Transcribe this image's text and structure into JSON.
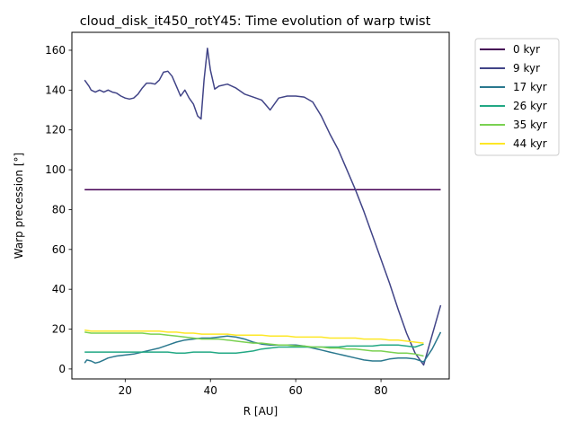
{
  "chart_data": {
    "type": "line",
    "title": "cloud_disk_it450_rotY45: Time evolution of warp twist",
    "xlabel": "R [AU]",
    "ylabel": "Warp precession [°]",
    "xlim": [
      7.5,
      96
    ],
    "ylim": [
      -5,
      169
    ],
    "xticks": [
      20,
      40,
      60,
      80
    ],
    "yticks": [
      0,
      20,
      40,
      60,
      80,
      100,
      120,
      140,
      160
    ],
    "legend_position": "outside-top-right",
    "series": [
      {
        "name": "0 kyr",
        "color": "#440154",
        "x": [
          10.5,
          94
        ],
        "y": [
          90,
          90
        ]
      },
      {
        "name": "9 kyr",
        "color": "#414487",
        "x": [
          10.5,
          11.5,
          12,
          13,
          14,
          15,
          16,
          17,
          18,
          19,
          20,
          21,
          22,
          23,
          24,
          25,
          26,
          27,
          28,
          29,
          30,
          31,
          32,
          33,
          34,
          35,
          36,
          37,
          37.8,
          38.5,
          39.3,
          40,
          41,
          42,
          44,
          46,
          48,
          50,
          52,
          54,
          56,
          58,
          60,
          62,
          64,
          66,
          68,
          70,
          72,
          74,
          76,
          78,
          80,
          82,
          84,
          86,
          88,
          90,
          92,
          94
        ],
        "y": [
          145,
          142,
          140,
          139,
          140,
          139,
          140,
          139,
          138.5,
          137,
          136,
          135.5,
          136,
          138,
          141,
          143.5,
          143.5,
          143,
          145,
          149,
          149.5,
          147,
          142,
          137,
          140,
          136,
          133,
          127,
          125.5,
          145,
          161,
          150,
          140.5,
          142,
          143,
          141,
          138,
          136.5,
          135,
          130,
          136,
          137,
          137,
          136.5,
          134,
          127,
          118,
          110,
          100,
          90,
          79,
          67,
          55,
          43,
          30,
          18,
          8,
          2,
          17,
          32
        ]
      },
      {
        "name": "17 kyr",
        "color": "#2a788e",
        "x": [
          10.5,
          11,
          12,
          13,
          14,
          15,
          16,
          18,
          20,
          22,
          24,
          26,
          28,
          30,
          32,
          34,
          36,
          38,
          40,
          42,
          44,
          46,
          48,
          50,
          52,
          54,
          56,
          58,
          60,
          62,
          64,
          66,
          68,
          70,
          72,
          74,
          76,
          78,
          80,
          82,
          84,
          86,
          88,
          90,
          92,
          94
        ],
        "y": [
          3,
          4.5,
          4,
          3,
          3.5,
          4.5,
          5.5,
          6.5,
          7,
          7.5,
          8.5,
          9.5,
          10.5,
          12,
          13.5,
          14.5,
          15,
          15.5,
          15.5,
          16,
          16.5,
          16,
          15,
          13.5,
          12.5,
          12,
          12,
          12,
          12,
          11.5,
          10.5,
          9.5,
          8.5,
          7.5,
          6.5,
          5.5,
          4.5,
          4,
          4,
          5,
          5.5,
          5.5,
          5,
          3.5,
          10,
          18.5
        ]
      },
      {
        "name": "26 kyr",
        "color": "#22a884",
        "x": [
          10.5,
          12,
          14,
          16,
          18,
          20,
          22,
          24,
          26,
          28,
          30,
          32,
          34,
          36,
          38,
          40,
          42,
          44,
          46,
          48,
          50,
          52,
          54,
          56,
          58,
          60,
          62,
          64,
          66,
          68,
          70,
          72,
          74,
          76,
          78,
          80,
          82,
          84,
          86,
          88,
          90
        ],
        "y": [
          8.5,
          8.5,
          8.5,
          8.5,
          8.5,
          8.5,
          8.5,
          8.5,
          8.5,
          8.5,
          8.5,
          8,
          8,
          8.5,
          8.5,
          8.5,
          8,
          8,
          8,
          8.5,
          9,
          10,
          10.5,
          11,
          11,
          11,
          11,
          11,
          11,
          11,
          11,
          11.5,
          11.5,
          11.5,
          11.5,
          12,
          12,
          12,
          11.5,
          11,
          12.5
        ]
      },
      {
        "name": "35 kyr",
        "color": "#7ad151",
        "x": [
          10.5,
          12,
          14,
          16,
          18,
          20,
          22,
          24,
          26,
          28,
          30,
          32,
          34,
          36,
          38,
          40,
          42,
          44,
          46,
          48,
          50,
          52,
          54,
          56,
          58,
          60,
          62,
          64,
          66,
          68,
          70,
          72,
          74,
          76,
          78,
          80,
          82,
          84,
          86,
          88,
          90
        ],
        "y": [
          18.5,
          18,
          18,
          18,
          18,
          18,
          18,
          18,
          17.5,
          17.5,
          17,
          16.5,
          16,
          15.5,
          15,
          15,
          15,
          14.5,
          14,
          13.5,
          13,
          13,
          12.5,
          12,
          12,
          11.5,
          11.5,
          11,
          11,
          10.5,
          10.5,
          10,
          10,
          9.5,
          9,
          9,
          8.5,
          8,
          8,
          7.5,
          6.5
        ]
      },
      {
        "name": "44 kyr",
        "color": "#fde725",
        "x": [
          10.5,
          12,
          14,
          16,
          18,
          20,
          22,
          24,
          26,
          28,
          30,
          32,
          34,
          36,
          38,
          40,
          42,
          44,
          46,
          48,
          50,
          52,
          54,
          56,
          58,
          60,
          62,
          64,
          66,
          68,
          70,
          72,
          74,
          76,
          78,
          80,
          82,
          84,
          86,
          88,
          90
        ],
        "y": [
          19.5,
          19,
          19,
          19,
          19,
          19,
          19,
          19,
          19,
          19,
          18.5,
          18.5,
          18,
          18,
          17.5,
          17.5,
          17.5,
          17.5,
          17,
          17,
          17,
          17,
          16.5,
          16.5,
          16.5,
          16,
          16,
          16,
          16,
          15.5,
          15.5,
          15.5,
          15.5,
          15,
          15,
          15,
          14.5,
          14.5,
          14,
          13.5,
          13
        ]
      }
    ]
  }
}
